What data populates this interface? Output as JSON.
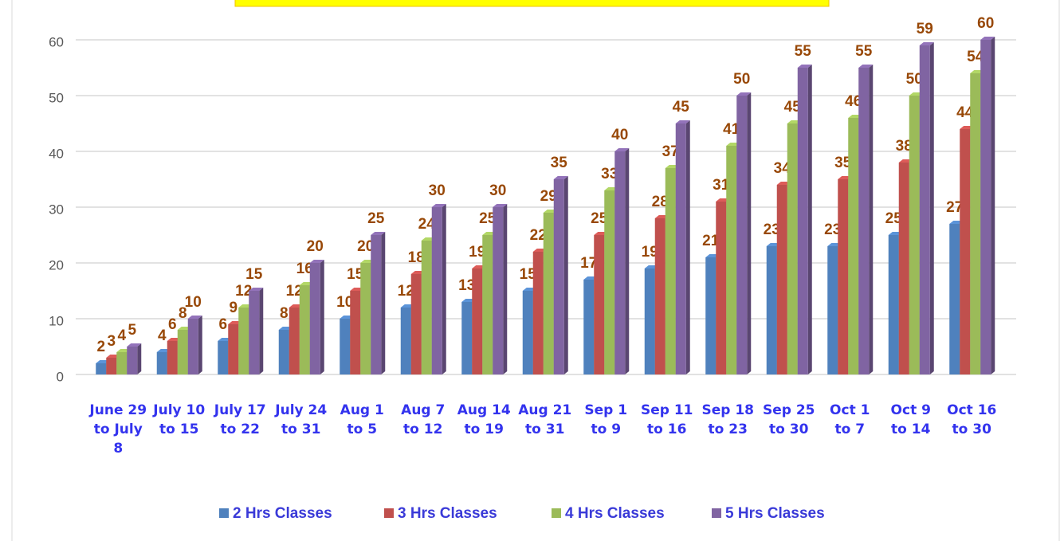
{
  "chart_data": {
    "type": "bar",
    "categories": [
      "June 29 to July 8",
      "July 10 to 15",
      "July 17 to 22",
      "July 24 to 31",
      "Aug 1 to 5",
      "Aug 7 to 12",
      "Aug 14 to 19",
      "Aug 21 to 31",
      "Sep 1 to 9",
      "Sep 11 to 16",
      "Sep 18 to 23",
      "Sep 25 to 30",
      "Oct 1 to 7",
      "Oct 9 to 14",
      "Oct 16 to 30"
    ],
    "series": [
      {
        "name": "2 Hrs Classes",
        "color": "#4f81bd",
        "values": [
          2,
          4,
          6,
          8,
          10,
          12,
          13,
          15,
          17,
          19,
          21,
          23,
          23,
          25,
          27
        ]
      },
      {
        "name": "3 Hrs Classes",
        "color": "#c0504d",
        "values": [
          3,
          6,
          9,
          12,
          15,
          18,
          19,
          22,
          25,
          28,
          31,
          34,
          35,
          38,
          44
        ]
      },
      {
        "name": "4 Hrs Classes",
        "color": "#9bbb59",
        "values": [
          4,
          8,
          12,
          16,
          20,
          24,
          25,
          29,
          33,
          37,
          41,
          45,
          46,
          50,
          54
        ]
      },
      {
        "name": "5 Hrs Classes",
        "color": "#8064a2",
        "values": [
          5,
          10,
          15,
          20,
          25,
          30,
          30,
          35,
          40,
          45,
          50,
          55,
          55,
          59,
          60
        ]
      }
    ],
    "ylim": [
      0,
      60
    ],
    "yticks": [
      0,
      10,
      20,
      30,
      40,
      50,
      60
    ],
    "grid": true,
    "legend": "bottom"
  }
}
